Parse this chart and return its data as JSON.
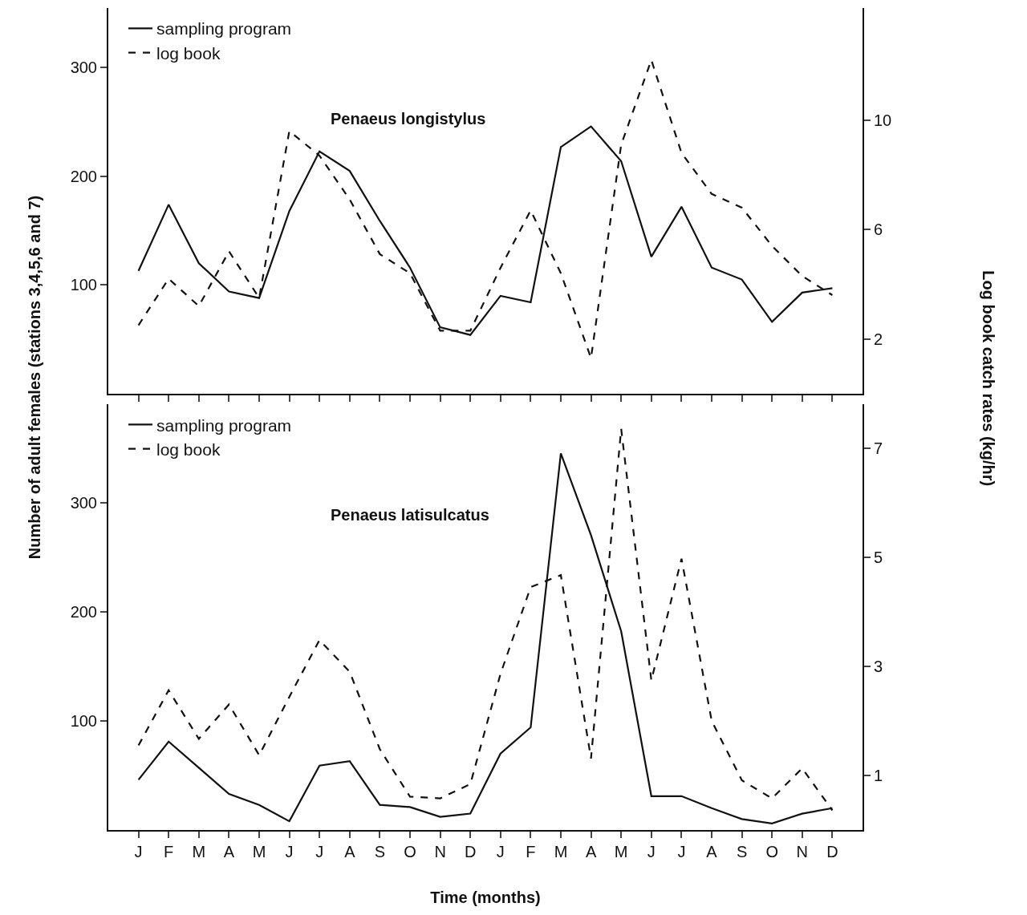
{
  "chart_data": [
    {
      "type": "line",
      "categories": [
        null,
        null,
        null,
        null,
        null,
        null,
        null,
        null,
        null,
        null,
        null,
        null,
        null,
        null,
        null,
        null,
        null,
        null,
        null,
        null,
        null,
        null,
        null,
        null
      ],
      "ylabel": "Number of adult females (stations 3,4,5,6 and 7)",
      "y2label": "Log book catch rates (kg/hr)",
      "annotations": [
        "Penaeus longistylus"
      ],
      "ylim": [
        0,
        355
      ],
      "yticks": [
        100,
        200,
        300
      ],
      "y2lim": [
        0,
        14.1
      ],
      "y2ticks": [
        2,
        6,
        10
      ],
      "tick_labels": "y",
      "legend": "top left",
      "series": [
        {
          "name": "sampling program",
          "color": "#111111",
          "line_style": "solid",
          "values": [
            113,
            174,
            120,
            94,
            88,
            168,
            223,
            205,
            159,
            116,
            61,
            54,
            90,
            84,
            227,
            246,
            214,
            126,
            172,
            116,
            105,
            66,
            93,
            97
          ]
        },
        {
          "name": "log book",
          "color": "#111111",
          "line_style": "dashed",
          "axis": "y2",
          "values": [
            2.5,
            4.2,
            3.2,
            5.2,
            3.5,
            9.6,
            8.7,
            7.1,
            5.1,
            4.4,
            2.3,
            2.3,
            4.6,
            6.7,
            4.4,
            1.3,
            9.1,
            12.2,
            8.8,
            7.3,
            6.8,
            5.4,
            4.3,
            3.6
          ]
        }
      ]
    },
    {
      "type": "line",
      "categories": [
        "J",
        "F",
        "M",
        "A",
        "M",
        "J",
        "J",
        "A",
        "S",
        "O",
        "N",
        "D",
        "J",
        "F",
        "M",
        "A",
        "M",
        "J",
        "J",
        "A",
        "S",
        "O",
        "N",
        "D"
      ],
      "xlabel": "Time (months)",
      "annotations": [
        "Penaeus latisulcatus"
      ],
      "ylim": [
        0,
        390
      ],
      "yticks": [
        100,
        200,
        300
      ],
      "y2lim": [
        0,
        7.8
      ],
      "y2ticks": [
        1,
        3,
        5,
        7
      ],
      "legend": "top left",
      "series": [
        {
          "name": "sampling program",
          "color": "#111111",
          "line_style": "solid",
          "values": [
            46,
            81,
            57,
            33,
            23,
            8,
            59,
            63,
            23,
            21,
            12,
            15,
            70,
            94,
            345,
            270,
            182,
            31,
            31,
            20,
            10,
            6,
            15,
            20
          ]
        },
        {
          "name": "log book",
          "color": "#111111",
          "line_style": "dashed",
          "axis": "y2",
          "values": [
            1.55,
            2.56,
            1.67,
            2.3,
            1.37,
            2.44,
            3.48,
            2.9,
            1.48,
            0.61,
            0.58,
            0.84,
            2.86,
            4.45,
            4.67,
            1.31,
            7.35,
            2.74,
            4.97,
            2.0,
            0.91,
            0.58,
            1.13,
            0.36
          ]
        }
      ]
    }
  ]
}
